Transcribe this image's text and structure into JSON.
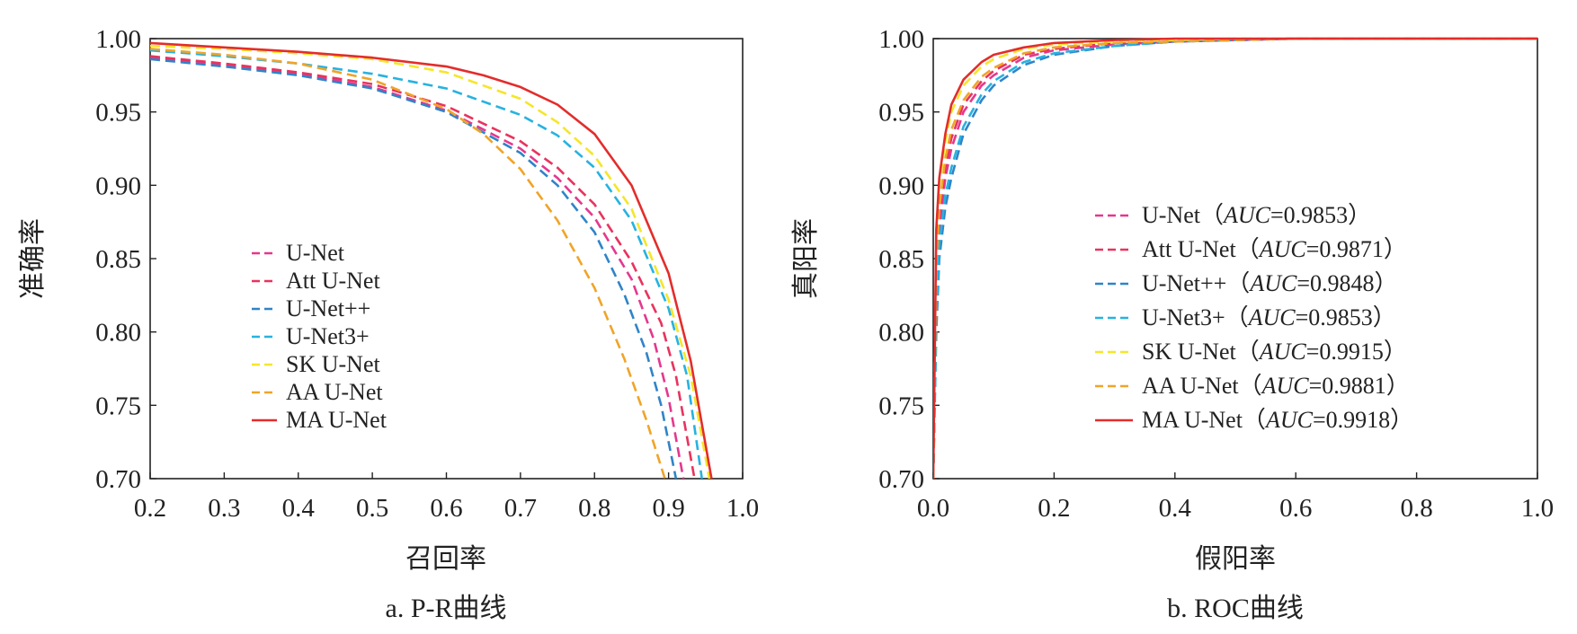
{
  "chart_data": [
    {
      "type": "line",
      "caption": "a. P-R曲线",
      "xlabel": "召回率",
      "ylabel": "准确率",
      "xlim": [
        0.2,
        1.0
      ],
      "ylim": [
        0.7,
        1.0
      ],
      "xticks": [
        "0.2",
        "0.3",
        "0.4",
        "0.5",
        "0.6",
        "0.7",
        "0.8",
        "0.9",
        "1.0"
      ],
      "yticks": [
        "0.70",
        "0.75",
        "0.80",
        "0.85",
        "0.90",
        "0.95",
        "1.00"
      ],
      "legend_position": "center-left",
      "series": [
        {
          "name": "U-Net",
          "color": "#e4388e",
          "dash": true,
          "x": [
            0.2,
            0.3,
            0.4,
            0.5,
            0.6,
            0.7,
            0.75,
            0.8,
            0.85,
            0.88,
            0.9,
            0.92
          ],
          "y": [
            0.987,
            0.982,
            0.976,
            0.967,
            0.951,
            0.925,
            0.905,
            0.878,
            0.836,
            0.795,
            0.755,
            0.7
          ]
        },
        {
          "name": "Att U-Net",
          "color": "#e8335e",
          "dash": true,
          "x": [
            0.2,
            0.3,
            0.4,
            0.5,
            0.6,
            0.7,
            0.75,
            0.8,
            0.85,
            0.89,
            0.91,
            0.935
          ],
          "y": [
            0.988,
            0.983,
            0.977,
            0.969,
            0.954,
            0.93,
            0.912,
            0.887,
            0.848,
            0.806,
            0.77,
            0.7
          ]
        },
        {
          "name": "U-Net++",
          "color": "#2f84c8",
          "dash": true,
          "x": [
            0.2,
            0.3,
            0.4,
            0.5,
            0.6,
            0.7,
            0.75,
            0.8,
            0.84,
            0.87,
            0.89,
            0.91
          ],
          "y": [
            0.986,
            0.981,
            0.975,
            0.966,
            0.95,
            0.922,
            0.9,
            0.868,
            0.826,
            0.786,
            0.75,
            0.7
          ]
        },
        {
          "name": "U-Net3+",
          "color": "#27b2e0",
          "dash": true,
          "x": [
            0.2,
            0.3,
            0.4,
            0.5,
            0.6,
            0.7,
            0.75,
            0.8,
            0.85,
            0.9,
            0.925,
            0.945
          ],
          "y": [
            0.992,
            0.988,
            0.983,
            0.976,
            0.966,
            0.948,
            0.934,
            0.912,
            0.876,
            0.816,
            0.77,
            0.7
          ]
        },
        {
          "name": "SK U-Net",
          "color": "#f5e62a",
          "dash": true,
          "x": [
            0.2,
            0.3,
            0.4,
            0.5,
            0.6,
            0.7,
            0.75,
            0.8,
            0.85,
            0.9,
            0.93,
            0.955
          ],
          "y": [
            0.995,
            0.993,
            0.99,
            0.986,
            0.977,
            0.959,
            0.943,
            0.92,
            0.884,
            0.822,
            0.77,
            0.7
          ]
        },
        {
          "name": "AA U-Net",
          "color": "#f0a428",
          "dash": true,
          "x": [
            0.2,
            0.3,
            0.4,
            0.5,
            0.6,
            0.65,
            0.7,
            0.75,
            0.8,
            0.84,
            0.87,
            0.895
          ],
          "y": [
            0.993,
            0.989,
            0.983,
            0.972,
            0.952,
            0.935,
            0.911,
            0.876,
            0.83,
            0.782,
            0.74,
            0.7
          ]
        },
        {
          "name": "MA U-Net",
          "color": "#e32d2b",
          "dash": false,
          "x": [
            0.2,
            0.3,
            0.4,
            0.5,
            0.6,
            0.65,
            0.7,
            0.75,
            0.8,
            0.85,
            0.9,
            0.93,
            0.958
          ],
          "y": [
            0.997,
            0.994,
            0.991,
            0.987,
            0.981,
            0.975,
            0.967,
            0.955,
            0.935,
            0.9,
            0.84,
            0.78,
            0.7
          ]
        }
      ]
    },
    {
      "type": "line",
      "caption": "b. ROC曲线",
      "xlabel": "假阳率",
      "ylabel": "真阳率",
      "xlim": [
        0.0,
        1.0
      ],
      "ylim": [
        0.7,
        1.0
      ],
      "xticks": [
        "0.0",
        "0.2",
        "0.4",
        "0.6",
        "0.8",
        "1.0"
      ],
      "yticks": [
        "0.70",
        "0.75",
        "0.80",
        "0.85",
        "0.90",
        "0.95",
        "1.00"
      ],
      "legend_position": "center",
      "auc_prefix": "AUC",
      "series": [
        {
          "name": "U-Net",
          "auc": "0.9853",
          "color": "#e4388e",
          "dash": true,
          "x": [
            0.0,
            0.005,
            0.01,
            0.02,
            0.03,
            0.05,
            0.08,
            0.1,
            0.15,
            0.2,
            0.3,
            0.4,
            0.5,
            0.6,
            0.7,
            0.8,
            1.0
          ],
          "y": [
            0.7,
            0.82,
            0.87,
            0.905,
            0.925,
            0.95,
            0.968,
            0.975,
            0.987,
            0.992,
            0.996,
            0.998,
            0.999,
            1.0,
            1.0,
            1.0,
            1.0
          ]
        },
        {
          "name": "Att U-Net",
          "auc": "0.9871",
          "color": "#e8335e",
          "dash": true,
          "x": [
            0.0,
            0.005,
            0.01,
            0.02,
            0.03,
            0.05,
            0.08,
            0.1,
            0.15,
            0.2,
            0.3,
            0.4,
            0.5,
            0.6,
            0.7,
            0.8,
            1.0
          ],
          "y": [
            0.7,
            0.835,
            0.88,
            0.912,
            0.932,
            0.955,
            0.971,
            0.978,
            0.989,
            0.993,
            0.997,
            0.998,
            0.999,
            1.0,
            1.0,
            1.0,
            1.0
          ]
        },
        {
          "name": "U-Net++",
          "auc": "0.9848",
          "color": "#2f84c8",
          "dash": true,
          "x": [
            0.0,
            0.005,
            0.01,
            0.02,
            0.03,
            0.05,
            0.08,
            0.1,
            0.15,
            0.2,
            0.3,
            0.4,
            0.5,
            0.6,
            0.7,
            0.8,
            1.0
          ],
          "y": [
            0.7,
            0.8,
            0.85,
            0.885,
            0.905,
            0.935,
            0.958,
            0.968,
            0.982,
            0.989,
            0.995,
            0.998,
            0.999,
            1.0,
            1.0,
            1.0,
            1.0
          ]
        },
        {
          "name": "U-Net3+",
          "auc": "0.9853",
          "color": "#27b2e0",
          "dash": true,
          "x": [
            0.0,
            0.005,
            0.01,
            0.02,
            0.03,
            0.05,
            0.08,
            0.1,
            0.15,
            0.2,
            0.3,
            0.4,
            0.5,
            0.6,
            0.7,
            0.8,
            1.0
          ],
          "y": [
            0.7,
            0.81,
            0.86,
            0.893,
            0.912,
            0.94,
            0.962,
            0.971,
            0.984,
            0.99,
            0.995,
            0.998,
            0.999,
            1.0,
            1.0,
            1.0,
            1.0
          ]
        },
        {
          "name": "SK U-Net",
          "auc": "0.9915",
          "color": "#f5e62a",
          "dash": true,
          "x": [
            0.0,
            0.005,
            0.01,
            0.02,
            0.03,
            0.05,
            0.08,
            0.1,
            0.15,
            0.2,
            0.3,
            0.4,
            0.5,
            0.6,
            0.7,
            0.8,
            1.0
          ],
          "y": [
            0.7,
            0.86,
            0.9,
            0.93,
            0.95,
            0.968,
            0.981,
            0.986,
            0.993,
            0.996,
            0.998,
            0.999,
            1.0,
            1.0,
            1.0,
            1.0,
            1.0
          ]
        },
        {
          "name": "AA U-Net",
          "auc": "0.9881",
          "color": "#f0a428",
          "dash": true,
          "x": [
            0.0,
            0.005,
            0.01,
            0.02,
            0.03,
            0.05,
            0.08,
            0.1,
            0.15,
            0.2,
            0.3,
            0.4,
            0.5,
            0.6,
            0.7,
            0.8,
            1.0
          ],
          "y": [
            0.7,
            0.845,
            0.885,
            0.918,
            0.938,
            0.958,
            0.974,
            0.98,
            0.99,
            0.994,
            0.997,
            0.998,
            0.999,
            1.0,
            1.0,
            1.0,
            1.0
          ]
        },
        {
          "name": "MA U-Net",
          "auc": "0.9918",
          "color": "#e32d2b",
          "dash": false,
          "x": [
            0.0,
            0.005,
            0.01,
            0.02,
            0.03,
            0.05,
            0.08,
            0.1,
            0.15,
            0.2,
            0.3,
            0.4,
            0.5,
            0.6,
            0.7,
            0.8,
            1.0
          ],
          "y": [
            0.7,
            0.87,
            0.905,
            0.935,
            0.955,
            0.972,
            0.984,
            0.989,
            0.994,
            0.997,
            0.999,
            1.0,
            1.0,
            1.0,
            1.0,
            1.0,
            1.0
          ]
        }
      ]
    }
  ]
}
